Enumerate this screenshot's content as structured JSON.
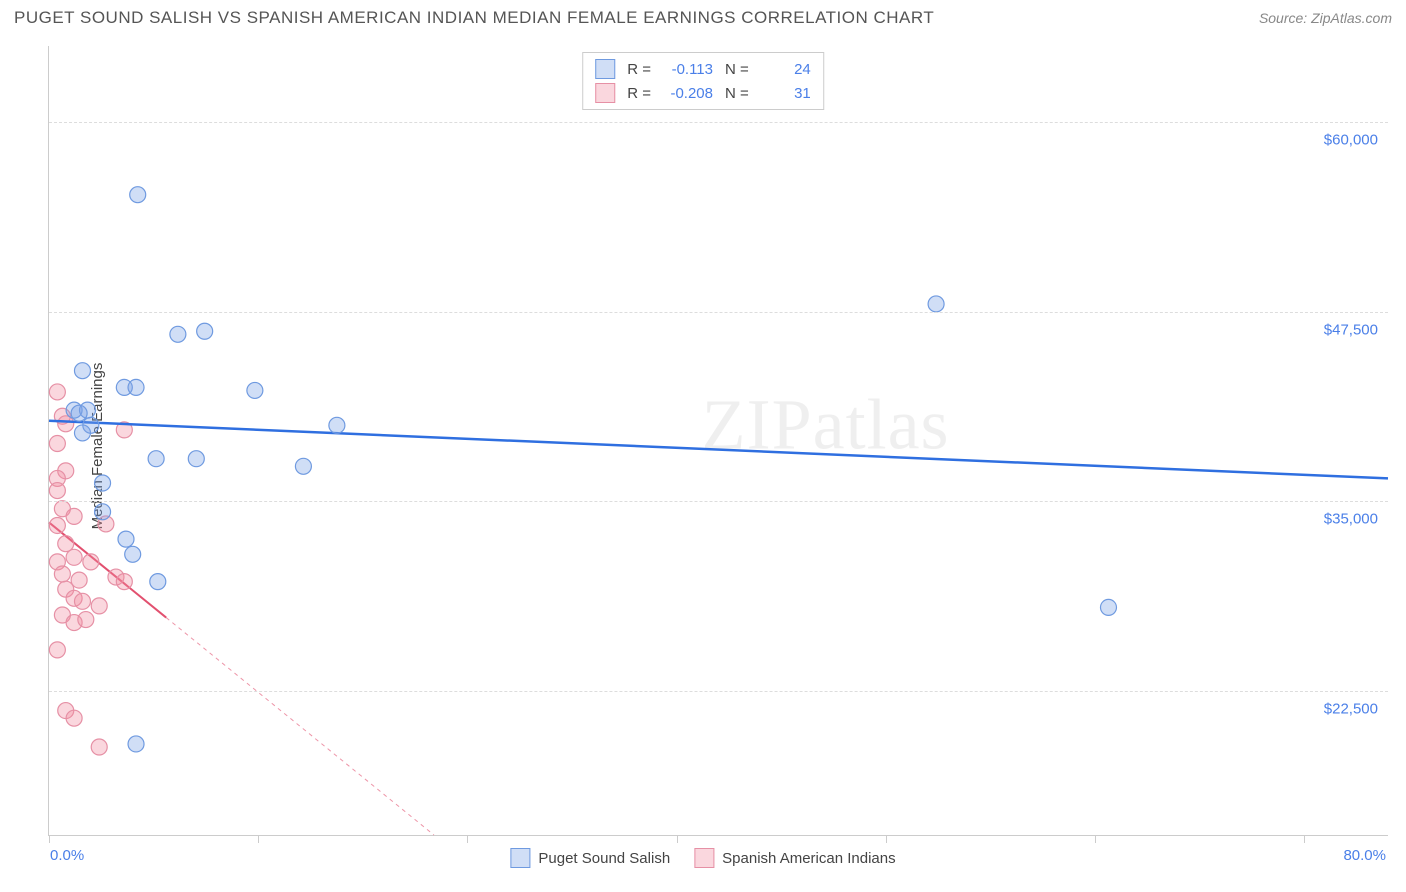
{
  "title": "PUGET SOUND SALISH VS SPANISH AMERICAN INDIAN MEDIAN FEMALE EARNINGS CORRELATION CHART",
  "source": "Source: ZipAtlas.com",
  "watermark": "ZIPatlas",
  "axes": {
    "y_title": "Median Female Earnings",
    "x_min_label": "0.0%",
    "x_max_label": "80.0%",
    "x_min": 0,
    "x_max": 80,
    "y_min": 13000,
    "y_max": 65000,
    "y_gridlines": [
      {
        "value": 22500,
        "label": "$22,500"
      },
      {
        "value": 35000,
        "label": "$35,000"
      },
      {
        "value": 47500,
        "label": "$47,500"
      },
      {
        "value": 60000,
        "label": "$60,000"
      }
    ],
    "x_ticks_pct": [
      0,
      12.5,
      25,
      37.5,
      50,
      62.5,
      75
    ]
  },
  "series": {
    "a": {
      "label": "Puget Sound Salish",
      "fill": "rgba(120,160,230,0.35)",
      "stroke": "#6f9ae0",
      "line_color": "#2f6fe0",
      "line_width": 2.5,
      "line_dash": "none",
      "R": "-0.113",
      "N": "24",
      "trend": {
        "x1": 0,
        "y1": 40300,
        "x2": 80,
        "y2": 36500
      },
      "points": [
        {
          "x": 5.3,
          "y": 55200
        },
        {
          "x": 53.0,
          "y": 48000
        },
        {
          "x": 7.7,
          "y": 46000
        },
        {
          "x": 9.3,
          "y": 46200
        },
        {
          "x": 2.0,
          "y": 43600
        },
        {
          "x": 4.5,
          "y": 42500
        },
        {
          "x": 5.2,
          "y": 42500
        },
        {
          "x": 12.3,
          "y": 42300
        },
        {
          "x": 1.5,
          "y": 41000
        },
        {
          "x": 2.3,
          "y": 41000
        },
        {
          "x": 2.5,
          "y": 40000
        },
        {
          "x": 17.2,
          "y": 40000
        },
        {
          "x": 6.4,
          "y": 37800
        },
        {
          "x": 8.8,
          "y": 37800
        },
        {
          "x": 15.2,
          "y": 37300
        },
        {
          "x": 3.2,
          "y": 36200
        },
        {
          "x": 3.2,
          "y": 34300
        },
        {
          "x": 4.6,
          "y": 32500
        },
        {
          "x": 5.0,
          "y": 31500
        },
        {
          "x": 6.5,
          "y": 29700
        },
        {
          "x": 63.3,
          "y": 28000
        },
        {
          "x": 5.2,
          "y": 19000
        },
        {
          "x": 1.8,
          "y": 40800
        },
        {
          "x": 2.0,
          "y": 39500
        }
      ]
    },
    "b": {
      "label": "Spanish American Indians",
      "fill": "rgba(240,140,160,0.35)",
      "stroke": "#e690a5",
      "line_color": "#e2506f",
      "line_width": 2,
      "line_dash": "4,4",
      "R": "-0.208",
      "N": "31",
      "trend": {
        "x1": 0,
        "y1": 33600,
        "x2": 23,
        "y2": 13000
      },
      "trend_solid_end_x": 7,
      "points": [
        {
          "x": 0.5,
          "y": 42200
        },
        {
          "x": 0.8,
          "y": 40600
        },
        {
          "x": 1.0,
          "y": 40100
        },
        {
          "x": 0.5,
          "y": 38800
        },
        {
          "x": 4.5,
          "y": 39700
        },
        {
          "x": 1.0,
          "y": 37000
        },
        {
          "x": 0.5,
          "y": 36500
        },
        {
          "x": 0.5,
          "y": 35700
        },
        {
          "x": 0.8,
          "y": 34500
        },
        {
          "x": 1.5,
          "y": 34000
        },
        {
          "x": 0.5,
          "y": 33400
        },
        {
          "x": 3.4,
          "y": 33500
        },
        {
          "x": 1.0,
          "y": 32200
        },
        {
          "x": 1.5,
          "y": 31300
        },
        {
          "x": 0.5,
          "y": 31000
        },
        {
          "x": 4.0,
          "y": 30000
        },
        {
          "x": 4.5,
          "y": 29700
        },
        {
          "x": 1.0,
          "y": 29200
        },
        {
          "x": 1.5,
          "y": 28600
        },
        {
          "x": 2.0,
          "y": 28400
        },
        {
          "x": 3.0,
          "y": 28100
        },
        {
          "x": 0.8,
          "y": 27500
        },
        {
          "x": 1.5,
          "y": 27000
        },
        {
          "x": 2.2,
          "y": 27200
        },
        {
          "x": 0.5,
          "y": 25200
        },
        {
          "x": 1.0,
          "y": 21200
        },
        {
          "x": 1.5,
          "y": 20700
        },
        {
          "x": 3.0,
          "y": 18800
        },
        {
          "x": 1.8,
          "y": 29800
        },
        {
          "x": 0.8,
          "y": 30200
        },
        {
          "x": 2.5,
          "y": 31000
        }
      ]
    }
  },
  "marker_radius": 8,
  "legend_labels": {
    "R": "R =",
    "N": "N ="
  }
}
